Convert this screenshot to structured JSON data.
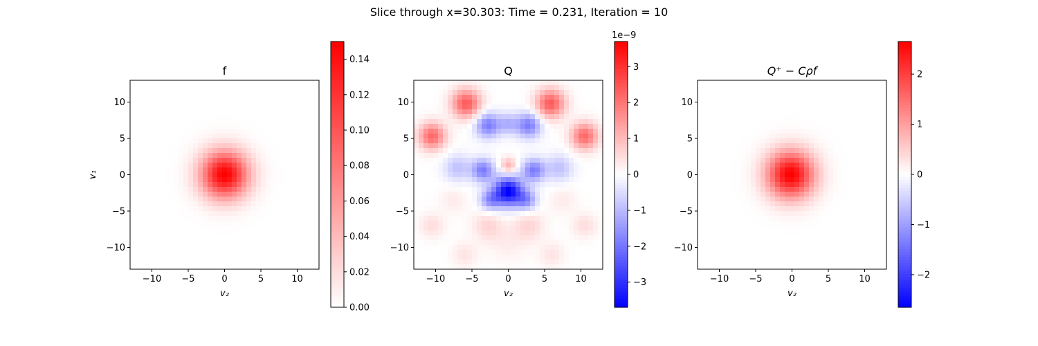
{
  "figure": {
    "suptitle": "Slice through x=30.303: Time = 0.231, Iteration = 10"
  },
  "chart_data": [
    {
      "type": "heatmap",
      "title": "f",
      "xlabel": "v₂",
      "ylabel": "v₁",
      "xlim": [
        -13,
        13
      ],
      "ylim": [
        -13,
        13
      ],
      "xticks": [
        -10,
        -5,
        0,
        5,
        10
      ],
      "yticks": [
        -10,
        -5,
        0,
        5,
        10
      ],
      "xtick_labels": [
        "−10",
        "−5",
        "0",
        "5",
        "10"
      ],
      "ytick_labels": [
        "−10",
        "−5",
        "0",
        "5",
        "10"
      ],
      "colormap": "white-red",
      "colorbar": {
        "range": [
          0,
          0.15
        ],
        "ticks": [
          0,
          0.02,
          0.04,
          0.06,
          0.08,
          0.1,
          0.12,
          0.14
        ],
        "tick_labels": [
          "0.00",
          "0.02",
          "0.04",
          "0.06",
          "0.08",
          "0.10",
          "0.12",
          "0.14"
        ],
        "offset_text": ""
      },
      "blobs": [
        {
          "cx": 0,
          "cy": 0,
          "sigma": 2.3,
          "amp": 0.15
        }
      ]
    },
    {
      "type": "heatmap",
      "title": "Q",
      "xlabel": "v₂",
      "ylabel": "",
      "xlim": [
        -13,
        13
      ],
      "ylim": [
        -13,
        13
      ],
      "xticks": [
        -10,
        -5,
        0,
        5,
        10
      ],
      "yticks": [
        -10,
        -5,
        0,
        5,
        10
      ],
      "xtick_labels": [
        "−10",
        "−5",
        "0",
        "5",
        "10"
      ],
      "ytick_labels": [
        "−10",
        "−5",
        "0",
        "5",
        "10"
      ],
      "colormap": "bwr",
      "colorbar": {
        "range": [
          -3.7,
          3.7
        ],
        "ticks": [
          -3,
          -2,
          -1,
          0,
          1,
          2,
          3
        ],
        "tick_labels": [
          "−3",
          "−2",
          "−1",
          "0",
          "1",
          "2",
          "3"
        ],
        "offset_text": "1e−9"
      },
      "blobs": [
        {
          "cx": -5.8,
          "cy": 9.8,
          "sigma": 1.4,
          "amp": 2.4
        },
        {
          "cx": 5.8,
          "cy": 9.8,
          "sigma": 1.4,
          "amp": 2.4
        },
        {
          "cx": -10.5,
          "cy": 5.3,
          "sigma": 1.3,
          "amp": 2.2
        },
        {
          "cx": 10.5,
          "cy": 5.3,
          "sigma": 1.3,
          "amp": 2.2
        },
        {
          "cx": -2.8,
          "cy": 6.8,
          "sigma": 1.2,
          "amp": -1.9
        },
        {
          "cx": 2.8,
          "cy": 6.8,
          "sigma": 1.2,
          "amp": -1.9
        },
        {
          "cx": 0,
          "cy": 7.0,
          "sigma": 1.0,
          "amp": -1.0
        },
        {
          "cx": 0,
          "cy": 1.2,
          "sigma": 0.8,
          "amp": 1.2
        },
        {
          "cx": -3.5,
          "cy": 0.6,
          "sigma": 1.1,
          "amp": -1.9
        },
        {
          "cx": 3.5,
          "cy": 0.6,
          "sigma": 1.1,
          "amp": -1.9
        },
        {
          "cx": -7.0,
          "cy": 0.9,
          "sigma": 1.3,
          "amp": -0.9
        },
        {
          "cx": 7.0,
          "cy": 0.9,
          "sigma": 1.3,
          "amp": -0.9
        },
        {
          "cx": 0,
          "cy": -2.3,
          "sigma": 1.4,
          "amp": -3.7
        },
        {
          "cx": -2.5,
          "cy": -3.5,
          "sigma": 1.0,
          "amp": -1.5
        },
        {
          "cx": 2.5,
          "cy": -3.5,
          "sigma": 1.0,
          "amp": -1.5
        },
        {
          "cx": -10.5,
          "cy": -7.0,
          "sigma": 1.2,
          "amp": 0.5
        },
        {
          "cx": 10.5,
          "cy": -7.0,
          "sigma": 1.2,
          "amp": 0.5
        },
        {
          "cx": -2.8,
          "cy": -7.0,
          "sigma": 1.5,
          "amp": 0.6
        },
        {
          "cx": 2.8,
          "cy": -7.0,
          "sigma": 1.5,
          "amp": 0.6
        },
        {
          "cx": -7.5,
          "cy": -3.5,
          "sigma": 1.3,
          "amp": 0.3
        },
        {
          "cx": 7.5,
          "cy": -3.5,
          "sigma": 1.3,
          "amp": 0.3
        },
        {
          "cx": -6.0,
          "cy": -11.0,
          "sigma": 1.2,
          "amp": 0.4
        },
        {
          "cx": 6.0,
          "cy": -11.0,
          "sigma": 1.2,
          "amp": 0.4
        },
        {
          "cx": 0,
          "cy": -9.5,
          "sigma": 1.8,
          "amp": 0.25
        }
      ]
    },
    {
      "type": "heatmap",
      "title": "Q⁺ − Cρf",
      "xlabel": "v₂",
      "ylabel": "",
      "xlim": [
        -13,
        13
      ],
      "ylim": [
        -13,
        13
      ],
      "xticks": [
        -10,
        -5,
        0,
        5,
        10
      ],
      "yticks": [
        -10,
        -5,
        0,
        5,
        10
      ],
      "xtick_labels": [
        "−10",
        "−5",
        "0",
        "5",
        "10"
      ],
      "ytick_labels": [
        "−10",
        "−5",
        "0",
        "5",
        "10"
      ],
      "colormap": "bwr",
      "colorbar": {
        "range": [
          -2.65,
          2.65
        ],
        "ticks": [
          -2,
          -1,
          0,
          1,
          2
        ],
        "tick_labels": [
          "−2",
          "−1",
          "0",
          "1",
          "2"
        ],
        "offset_text": ""
      },
      "blobs": [
        {
          "cx": -0.2,
          "cy": 0,
          "sigma": 2.3,
          "amp": 2.65
        }
      ]
    }
  ]
}
